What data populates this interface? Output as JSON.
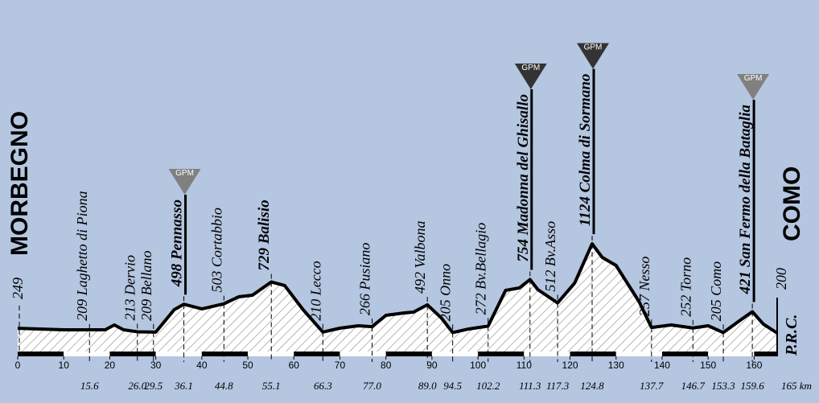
{
  "chart_data": {
    "type": "profile",
    "x": [
      0,
      10,
      19,
      21,
      23,
      26,
      30,
      34,
      36.1,
      40,
      44.8,
      48,
      51,
      55.1,
      58,
      62,
      66.3,
      70,
      74,
      77,
      80,
      84,
      86,
      89,
      92,
      94.5,
      98,
      102.2,
      106,
      109,
      111.3,
      113,
      117.3,
      121,
      124.8,
      127,
      130,
      135,
      137.7,
      142,
      146.7,
      150,
      153.3,
      157,
      159.6,
      162,
      165
    ],
    "values": [
      249,
      233,
      233,
      283,
      233,
      213,
      209,
      442,
      498,
      450,
      503,
      575,
      592,
      729,
      692,
      442,
      210,
      250,
      275,
      266,
      383,
      408,
      417,
      492,
      358,
      205,
      242,
      272,
      642,
      667,
      754,
      650,
      512,
      717,
      1124,
      983,
      900,
      525,
      257,
      283,
      252,
      275,
      205,
      333,
      421,
      292,
      200
    ],
    "xlim": [
      0,
      165
    ],
    "xticks": [
      0,
      10,
      20,
      30,
      40,
      50,
      60,
      70,
      80,
      90,
      100,
      110,
      120,
      130,
      140,
      150,
      160
    ],
    "start": {
      "name": "MORBEGNO",
      "alt": 249
    },
    "finish": {
      "name": "COMO",
      "alt": 200,
      "note": "P.R.C.",
      "km_label": "165 km"
    },
    "waypoints": [
      {
        "name": "Laghetto di Piona",
        "alt": 209,
        "km": 15.6
      },
      {
        "name": "Dervio",
        "alt": 213,
        "km": {
          "value": 26,
          "label": "26.0"
        }
      },
      {
        "name": "Bellano",
        "alt": 209,
        "km": 29.5
      },
      {
        "name": "Pennasso",
        "alt": 498,
        "km": 36.1,
        "bold": true,
        "gpm": "GPM",
        "gpm_color": "#808080"
      },
      {
        "name": "Cortabbio",
        "alt": 503,
        "km": 44.8
      },
      {
        "name": "Balisio",
        "alt": 729,
        "km": 55.1,
        "bold": true
      },
      {
        "name": "Lecco",
        "alt": 210,
        "km": 66.3
      },
      {
        "name": "Pusiano",
        "alt": 266,
        "km": {
          "value": 77,
          "label": "77.0"
        }
      },
      {
        "name": "Valbona",
        "alt": 492,
        "km": {
          "value": 89,
          "label": "89.0"
        }
      },
      {
        "name": "Onno",
        "alt": 205,
        "km": 94.5
      },
      {
        "name": "Bv.Bellagio",
        "alt": 272,
        "km": 102.2
      },
      {
        "name": "Madonna del Ghisallo",
        "alt": 754,
        "km": 111.3,
        "bold": true,
        "gpm": "GPM",
        "gpm_color": "#333333"
      },
      {
        "name": "Bv.Asso",
        "alt": 512,
        "km": 117.3
      },
      {
        "name": "Colma di Sormano",
        "alt": 1124,
        "km": 124.8,
        "bold": true,
        "gpm": "GPM",
        "gpm_color": "#333333"
      },
      {
        "name": "Nesso",
        "alt": 257,
        "km": 137.7
      },
      {
        "name": "Torno",
        "alt": 252,
        "km": 146.7
      },
      {
        "name": "Como",
        "alt": 205,
        "km": 153.3
      },
      {
        "name": "San Fermo della Bataglia",
        "alt": 421,
        "km": 159.6,
        "bold": true,
        "gpm": "GPM",
        "gpm_color": "#808080"
      }
    ]
  }
}
